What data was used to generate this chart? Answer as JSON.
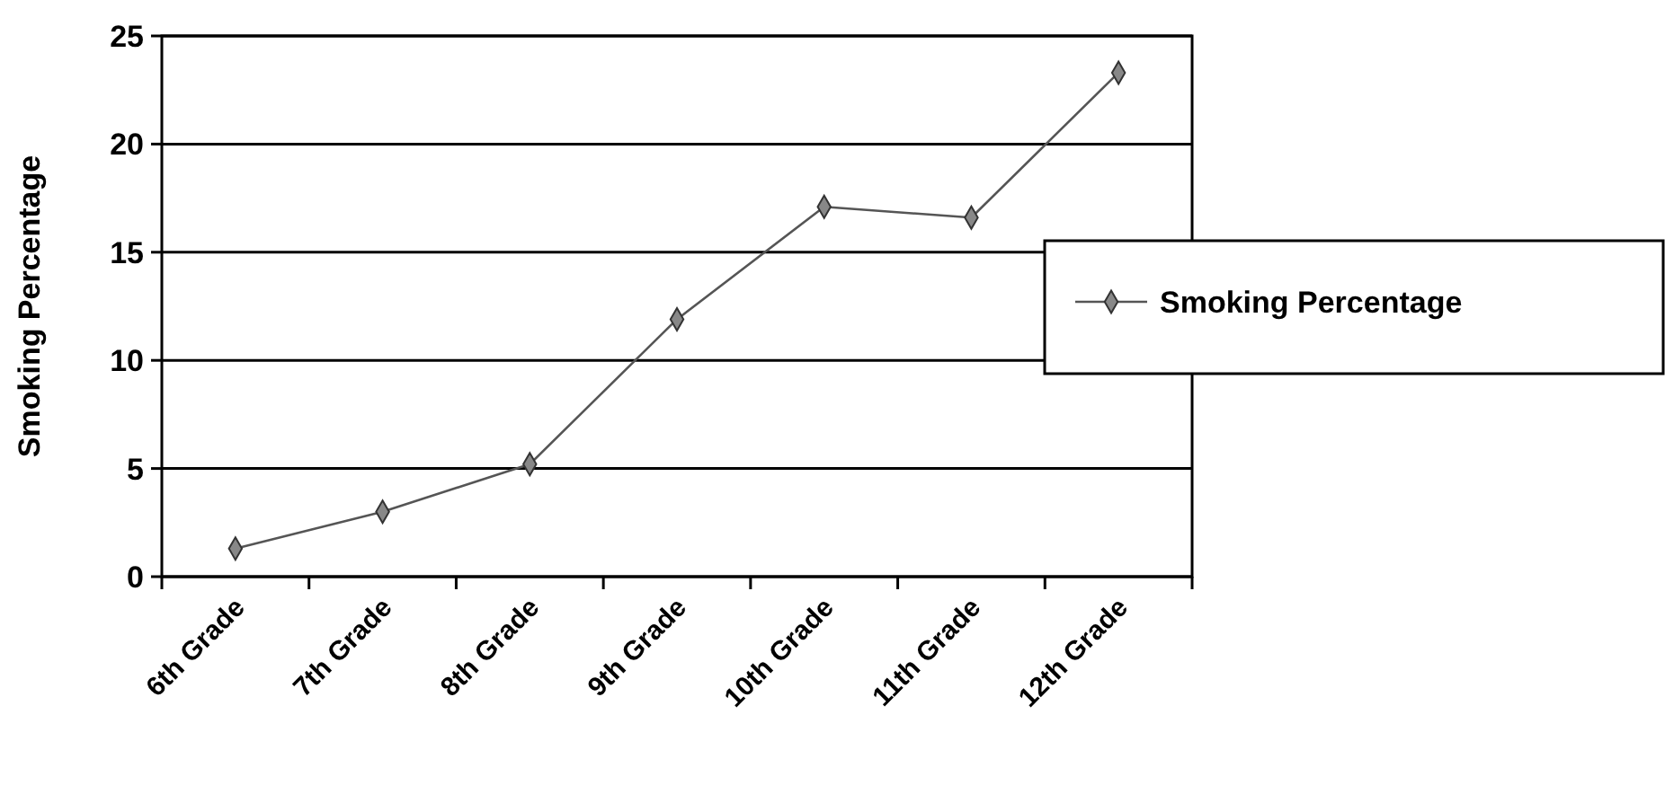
{
  "chart_data": {
    "type": "line",
    "ylabel": "Smoking Percentage",
    "categories": [
      "6th Grade",
      "7th Grade",
      "8th Grade",
      "9th Grade",
      "10th Grade",
      "11th Grade",
      "12th Grade"
    ],
    "series": [
      {
        "name": "Smoking Percentage",
        "color": "#555555",
        "values": [
          1.3,
          3.0,
          5.2,
          11.9,
          17.1,
          16.6,
          23.3
        ]
      }
    ],
    "ylim": [
      0,
      25
    ],
    "yticks": [
      0,
      5,
      10,
      15,
      20,
      25
    ],
    "grid": "y",
    "legend": "right",
    "marker": "diamond",
    "line_style": "solid"
  }
}
